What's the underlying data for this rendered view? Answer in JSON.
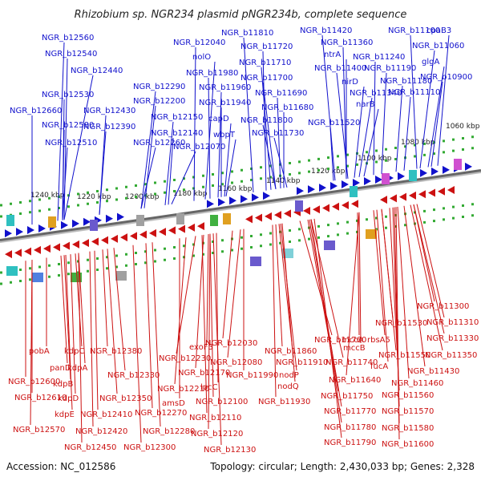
{
  "title": "Rhizobium sp. NGR234 plasmid pNGR234b, complete sequence",
  "footer": {
    "accession": "Accession: NC_012586",
    "topology": "Topology: circular; Length: 2,430,033 bp; Genes: 2,328"
  },
  "colors": {
    "plus": "#1111cc",
    "minus": "#cc1111",
    "backbone": "#888888"
  },
  "kbp_ticks": [
    "1060 kbp",
    "1080 kbp",
    "1100 kbp",
    "1120 kbp",
    "1140 kbp",
    "1160 kbp",
    "1180 kbp",
    "1200 kbp",
    "1220 kbp",
    "1240 kbp"
  ],
  "top_labels": [
    "NGR_b12560",
    "NGR_b12540",
    "NGR_b12440",
    "NGR_b12530",
    "NGR_b12430",
    "NGR_b12660",
    "NGR_b12580",
    "NGR_b12390",
    "NGR_b12510",
    "NGR_b12290",
    "NGR_b12200",
    "NGR_b12150",
    "NGR_b12140",
    "NGR_b12260",
    "NGR_b12070",
    "NGR_b12040",
    "nolO",
    "NGR_b11980",
    "NGR_b11960",
    "NGR_b11940",
    "capD",
    "wbpT",
    "NGR_b11810",
    "NGR_b11720",
    "NGR_b11710",
    "NGR_b11700",
    "NGR_b11690",
    "NGR_b11680",
    "NGR_b11800",
    "NGR_b11730",
    "NGR_b11420",
    "NGR_b11360",
    "ntrA",
    "NGR_b11400",
    "nirD",
    "NGR_b11340",
    "narB",
    "NGR_b11520",
    "NGR_b11100",
    "NGR_b11240",
    "NGR_b11190",
    "NGR_b11180",
    "NGR_b11110",
    "NGR_b11060",
    "cpaB3",
    "glgA",
    "NGR_b10900"
  ],
  "bottom_labels": [
    "NGR_b11300",
    "NGR_b11310",
    "NGR_b11330",
    "NGR_b11350",
    "NGR_b11430",
    "NGR_b11460",
    "NGR_b11530",
    "rbsA5",
    "NGR_b11550",
    "mccA",
    "mccB",
    "fucA",
    "NGR_b11640",
    "NGR_b11560",
    "NGR_b11570",
    "NGR_b11580",
    "NGR_b11600",
    "NGR_b11760",
    "NGR_b11740",
    "NGR_b11750",
    "NGR_b11770",
    "NGR_b11780",
    "NGR_b11790",
    "NGR_b11860",
    "NGR_b11910",
    "nodP",
    "nodQ",
    "NGR_b11930",
    "NGR_b12030",
    "NGR_b12080",
    "NGR_b11990",
    "exoF3",
    "NGR_b12230",
    "NGR_b12170",
    "lpcC",
    "NGR_b12100",
    "NGR_b12110",
    "NGR_b12120",
    "NGR_b12130",
    "NGR_b12210",
    "amsD",
    "NGR_b12380",
    "NGR_b12330",
    "NGR_b12350",
    "NGR_b12270",
    "NGR_b12280",
    "NGR_b12300",
    "pobA",
    "panD",
    "kdpC",
    "kdpA",
    "kdpB",
    "kdpD",
    "kdpE",
    "NGR_b12600",
    "NGR_b12610",
    "NGR_b12570",
    "NGR_b12410",
    "NGR_b12420",
    "NGR_b12450"
  ]
}
